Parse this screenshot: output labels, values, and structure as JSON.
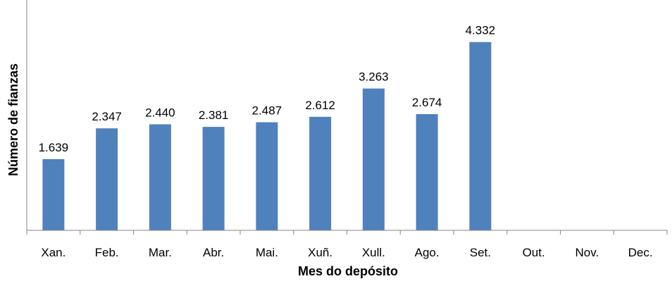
{
  "chart_data": {
    "type": "bar",
    "categories": [
      "Xan.",
      "Feb.",
      "Mar.",
      "Abr.",
      "Mai.",
      "Xuñ.",
      "Xull.",
      "Ago.",
      "Set.",
      "Out.",
      "Nov.",
      "Dec."
    ],
    "values": [
      1639,
      2347,
      2440,
      2381,
      2487,
      2612,
      3263,
      2674,
      4332,
      null,
      null,
      null
    ],
    "value_labels": [
      "1.639",
      "2.347",
      "2.440",
      "2.381",
      "2.487",
      "2.612",
      "3.263",
      "2.674",
      "4.332",
      "",
      "",
      ""
    ],
    "xlabel": "Mes do depósito",
    "ylabel": "Número de fianzas",
    "ylim": [
      0,
      5000
    ],
    "grid": false,
    "legend": "none",
    "bar_color": "#4f81bd"
  }
}
